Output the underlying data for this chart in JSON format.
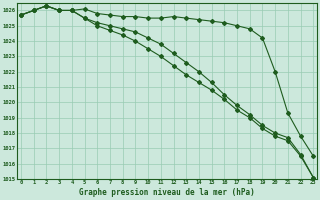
{
  "title": "Graphe pression niveau de la mer (hPa)",
  "xlabel_ticks": [
    0,
    1,
    2,
    3,
    4,
    5,
    6,
    7,
    8,
    9,
    10,
    11,
    12,
    13,
    14,
    15,
    16,
    17,
    18,
    19,
    20,
    21,
    22,
    23
  ],
  "ylim": [
    1015,
    1026.5
  ],
  "yticks": [
    1015,
    1016,
    1017,
    1018,
    1019,
    1020,
    1021,
    1022,
    1023,
    1024,
    1025,
    1026
  ],
  "background_color": "#cce8dc",
  "grid_color": "#99ccb3",
  "line_color": "#1e5c1e",
  "series1": [
    1025.7,
    1026.0,
    1026.3,
    1026.0,
    1026.0,
    1026.1,
    1025.8,
    1025.7,
    1025.6,
    1025.6,
    1025.5,
    1025.5,
    1025.6,
    1025.5,
    1025.4,
    1025.3,
    1025.2,
    1025.0,
    1024.8,
    1024.2,
    1022.0,
    1019.3,
    1017.8,
    1016.5
  ],
  "series2": [
    1025.7,
    1026.0,
    1026.3,
    1026.0,
    1026.0,
    1025.5,
    1025.2,
    1025.0,
    1024.8,
    1024.6,
    1024.2,
    1023.8,
    1023.2,
    1022.6,
    1022.0,
    1021.3,
    1020.5,
    1019.8,
    1019.2,
    1018.5,
    1018.0,
    1017.7,
    1016.6,
    1015.1
  ],
  "series3": [
    1025.7,
    1026.0,
    1026.3,
    1026.0,
    1026.0,
    1025.5,
    1025.0,
    1024.7,
    1024.4,
    1024.0,
    1023.5,
    1023.0,
    1022.4,
    1021.8,
    1021.3,
    1020.8,
    1020.2,
    1019.5,
    1019.0,
    1018.3,
    1017.8,
    1017.5,
    1016.5,
    1015.1
  ]
}
